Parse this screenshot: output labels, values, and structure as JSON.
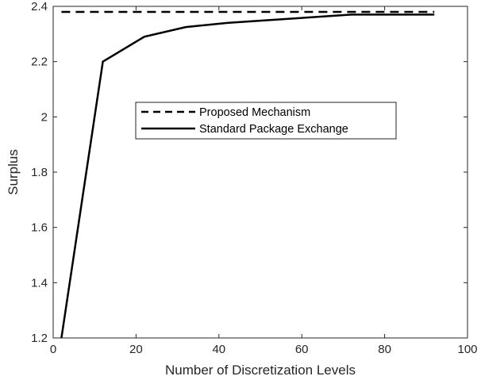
{
  "chart_data": {
    "type": "line",
    "title": "",
    "xlabel": "Number of Discretization Levels",
    "ylabel": "Surplus",
    "xlim": [
      0,
      100
    ],
    "ylim": [
      1.2,
      2.4
    ],
    "xticks": [
      0,
      20,
      40,
      60,
      80,
      100
    ],
    "yticks": [
      1.2,
      1.4,
      1.6,
      1.8,
      2,
      2.2,
      2.4
    ],
    "grid": false,
    "legend_position": "center-right",
    "series": [
      {
        "name": "Proposed Mechanism",
        "style": "dashed",
        "color": "#000000",
        "x": [
          2,
          12,
          22,
          32,
          42,
          52,
          62,
          72,
          82,
          92
        ],
        "y": [
          2.38,
          2.38,
          2.38,
          2.38,
          2.38,
          2.38,
          2.38,
          2.38,
          2.38,
          2.38
        ]
      },
      {
        "name": "Standard Package Exchange",
        "style": "solid",
        "color": "#000000",
        "x": [
          2,
          12,
          22,
          32,
          42,
          52,
          62,
          72,
          82,
          92
        ],
        "y": [
          1.2,
          2.2,
          2.29,
          2.325,
          2.34,
          2.35,
          2.36,
          2.37,
          2.37,
          2.37
        ]
      }
    ]
  }
}
